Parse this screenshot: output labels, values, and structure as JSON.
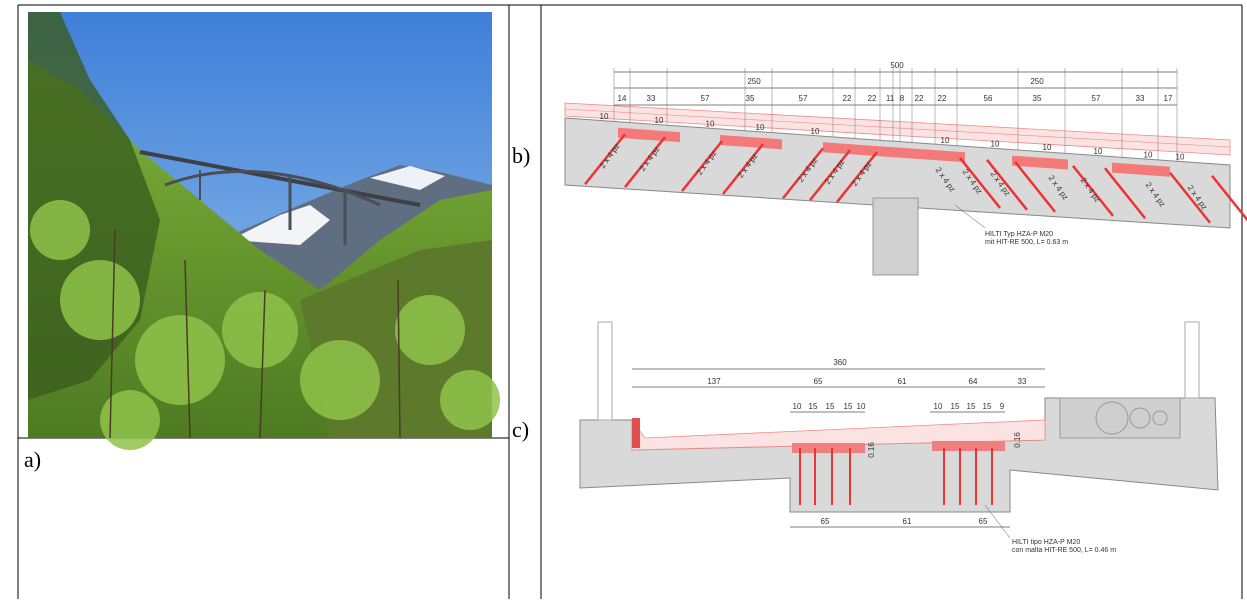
{
  "panel_a": {
    "label": "a)"
  },
  "panel_b": {
    "label": "b)",
    "total": 500,
    "halves": [
      250,
      250
    ],
    "spacings": [
      14,
      33,
      57,
      35,
      57,
      22,
      22,
      11,
      8,
      22,
      22,
      56,
      35,
      57,
      33,
      17
    ],
    "thicknesses": [
      10,
      10,
      10,
      10,
      10,
      10,
      10,
      10,
      10,
      10,
      10
    ],
    "anchor_labels": [
      "2 x 4 pz",
      "2 x 4 pz",
      "2 x 4 pz",
      "2 x 4 pz",
      "2 x 4 pz",
      "2 x 4 pz",
      "2 x 4 pz",
      "2 x 4 pz",
      "2 x 4 pz",
      "2 x 4 pz",
      "2 x 4 pz",
      "2 x 4 pz",
      "2 x 4 pz",
      "2 x 4 pz"
    ],
    "note": [
      "HILTI Typ HZA-P M20",
      "mit HIT-RE 500, L= 0.63 m"
    ]
  },
  "panel_c": {
    "label": "c)",
    "total": 360,
    "spacings": [
      137,
      65,
      61,
      64,
      33
    ],
    "anchor_spacings": [
      10,
      15,
      15,
      15,
      10,
      10,
      15,
      15,
      15,
      9
    ],
    "overlay": [
      0.16,
      0.16
    ],
    "bottom_spacings": [
      65,
      61,
      65
    ],
    "note": [
      "HILTI tipo HZA-P M20",
      "con malta HIT-RE 500, L= 0.46 m"
    ]
  }
}
